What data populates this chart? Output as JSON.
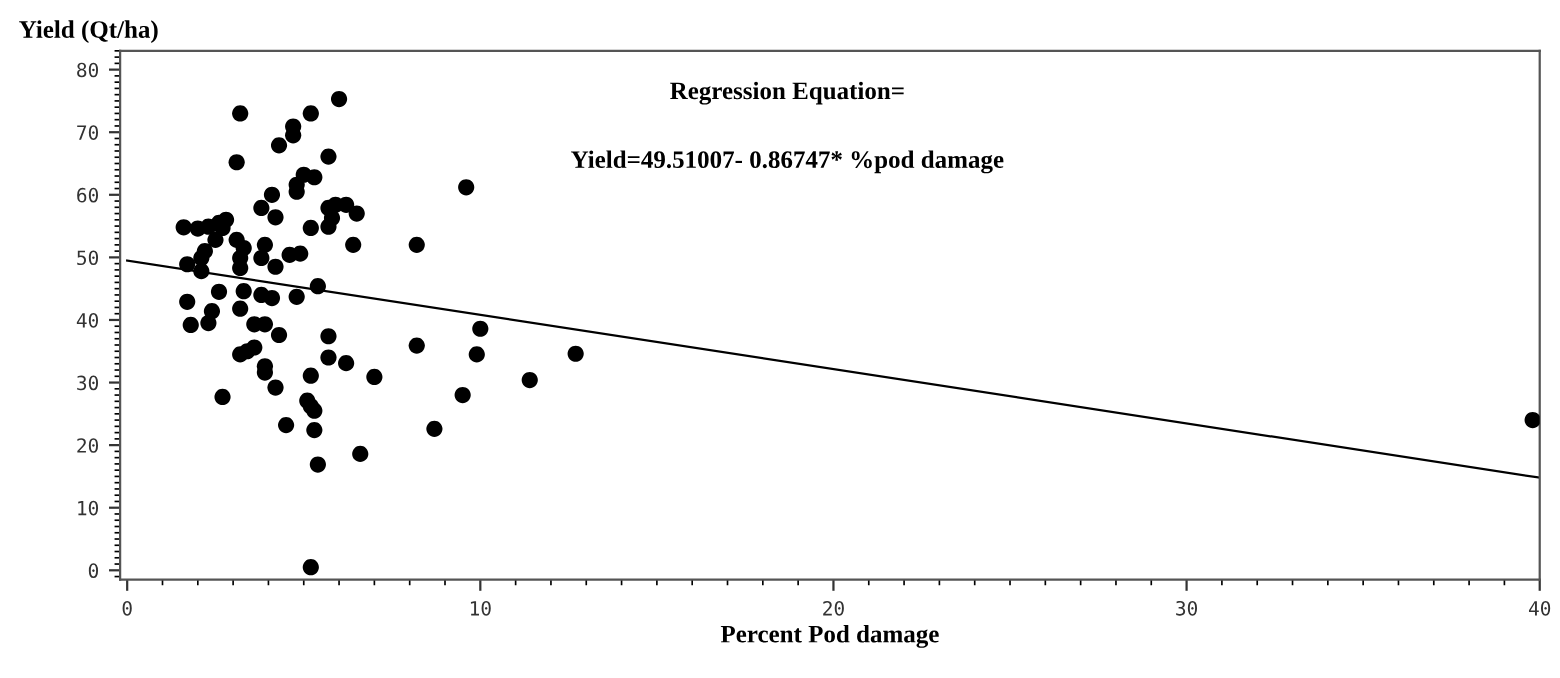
{
  "chart_data": {
    "type": "scatter",
    "xlabel": "Percent Pod damage",
    "ylabel": "Yield (Qt/ha)",
    "annotations": [
      "Regression Equation=",
      "Yield=49.51007- 0.86747* %pod damage"
    ],
    "xlim": [
      -0.2,
      40
    ],
    "ylim": [
      -1.5,
      83
    ],
    "xticks": [
      0,
      10,
      20,
      30,
      40
    ],
    "yticks": [
      0,
      10,
      20,
      30,
      40,
      50,
      60,
      70,
      80
    ],
    "grid": false,
    "legend": false,
    "marker": "circle",
    "series": [
      {
        "color": "#000000",
        "x": [
          3.2,
          5.2,
          6.0,
          4.7,
          4.7,
          4.3,
          3.1,
          5.7,
          9.6,
          5.0,
          4.8,
          4.8,
          5.3,
          4.1,
          3.8,
          4.2,
          5.7,
          5.9,
          6.2,
          5.8,
          5.7,
          6.5,
          5.2,
          6.4,
          8.2,
          1.6,
          2.0,
          2.3,
          2.6,
          2.8,
          2.7,
          2.5,
          3.1,
          3.3,
          3.9,
          3.8,
          3.2,
          3.2,
          4.6,
          4.9,
          4.2,
          1.7,
          2.1,
          2.2,
          2.1,
          5.4,
          2.6,
          3.3,
          3.8,
          4.1,
          4.8,
          1.7,
          3.2,
          2.4,
          1.8,
          2.3,
          3.6,
          3.9,
          4.3,
          5.7,
          8.2,
          10.0,
          9.9,
          12.7,
          3.2,
          3.4,
          3.6,
          5.7,
          6.2,
          3.9,
          3.9,
          5.2,
          7.0,
          4.2,
          2.7,
          9.5,
          11.4,
          5.1,
          5.2,
          5.3,
          4.5,
          5.3,
          8.7,
          6.6,
          5.4,
          5.2,
          39.8
        ],
        "values": [
          73.0,
          73.0,
          75.3,
          70.9,
          69.5,
          67.9,
          65.2,
          66.1,
          61.2,
          63.2,
          61.6,
          60.5,
          62.8,
          60.0,
          57.9,
          56.4,
          57.9,
          58.4,
          58.4,
          56.3,
          54.9,
          57.0,
          54.7,
          52.0,
          52.0,
          54.8,
          54.6,
          54.9,
          55.5,
          56.0,
          54.7,
          52.8,
          52.8,
          51.5,
          52.0,
          49.9,
          49.9,
          48.3,
          50.4,
          50.6,
          48.5,
          48.9,
          49.9,
          51.0,
          47.8,
          45.4,
          44.5,
          44.6,
          44.0,
          43.5,
          43.7,
          42.9,
          41.8,
          41.4,
          39.2,
          39.5,
          39.3,
          39.3,
          37.6,
          37.4,
          35.9,
          38.6,
          34.5,
          34.6,
          34.5,
          35.0,
          35.6,
          34.0,
          33.1,
          32.6,
          31.6,
          31.1,
          30.9,
          29.2,
          27.7,
          28.0,
          30.4,
          27.1,
          26.2,
          25.5,
          23.2,
          22.4,
          22.6,
          18.6,
          16.9,
          0.5,
          24.0
        ]
      },
      {
        "type": "line",
        "color": "#000000",
        "marker": "none",
        "line_style": "solid",
        "x": [
          0,
          40
        ],
        "values": [
          49.5,
          14.8
        ]
      }
    ]
  }
}
